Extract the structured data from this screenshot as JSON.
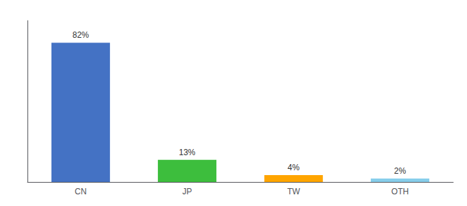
{
  "chart_data": {
    "type": "bar",
    "categories": [
      "CN",
      "JP",
      "TW",
      "OTH"
    ],
    "values": [
      82,
      13,
      4,
      2
    ],
    "value_labels": [
      "82%",
      "13%",
      "4%",
      "2%"
    ],
    "colors": [
      "#4472C4",
      "#3DBE3D",
      "#FFA500",
      "#87CEEB"
    ],
    "ylim": [
      0,
      95
    ],
    "data_labels": true,
    "tick_labels": "x",
    "grid": false
  }
}
